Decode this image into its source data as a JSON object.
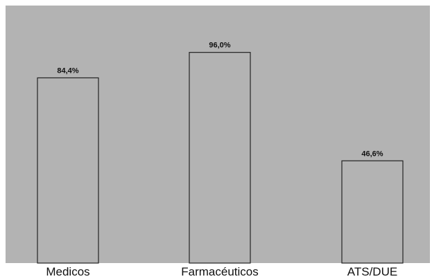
{
  "chart_data": {
    "type": "bar",
    "categories": [
      "Medicos",
      "Farmacéuticos",
      "ATS/DUE"
    ],
    "values": [
      84.4,
      96.0,
      46.6
    ],
    "data_labels": [
      "84,4%",
      "96,0%",
      "46,6%"
    ],
    "title": "",
    "xlabel": "",
    "ylabel": "",
    "ylim": [
      0,
      100
    ],
    "grid": false,
    "legend": "none",
    "colors": {
      "background": "#b3b3b3",
      "bar_fill": "#b3b3b3",
      "bar_stroke": "#222222",
      "text": "#111111"
    }
  }
}
